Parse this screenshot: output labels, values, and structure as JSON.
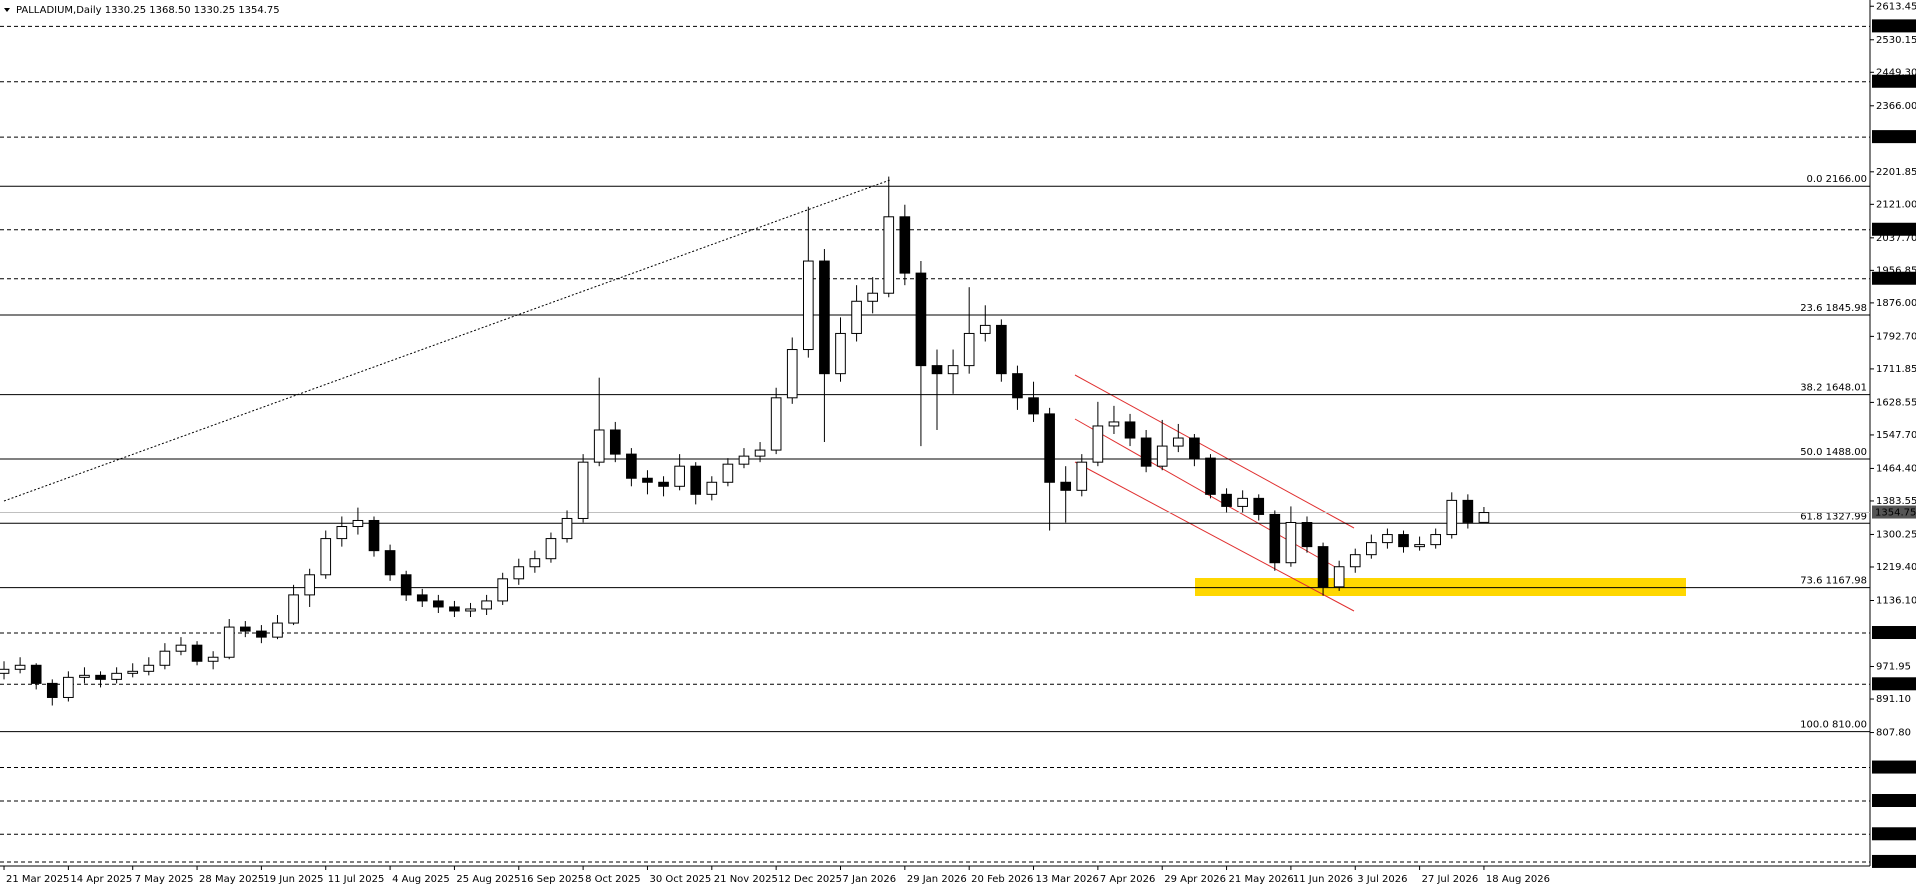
{
  "chart_data": {
    "type": "candlestick",
    "title": "PALLADIUM,Daily  1330.25 1368.50 1330.25 1354.75",
    "x": [
      0,
      4,
      8,
      12,
      16,
      20,
      24,
      28,
      32,
      36,
      40,
      44,
      48,
      52,
      56,
      60,
      64,
      68,
      72,
      76,
      80,
      84,
      88,
      92,
      96,
      100,
      104,
      108,
      112,
      116,
      120,
      124,
      128,
      132,
      136,
      140,
      144,
      148,
      152,
      156,
      160,
      164,
      168,
      172,
      176,
      180,
      184,
      188,
      192,
      196,
      200,
      204,
      208,
      212,
      216,
      220,
      224,
      228,
      232,
      236,
      240,
      244,
      248,
      252,
      256,
      260,
      264,
      268,
      272,
      276,
      280,
      284,
      288,
      292,
      296,
      300,
      304,
      308,
      312,
      316,
      320,
      324,
      328,
      332,
      336,
      340,
      344,
      348,
      352,
      356,
      360,
      364,
      368
    ],
    "open": [
      955,
      965,
      975,
      930,
      895,
      945,
      950,
      940,
      955,
      960,
      975,
      1010,
      1025,
      985,
      995,
      1070,
      1060,
      1045,
      1080,
      1150,
      1200,
      1290,
      1320,
      1335,
      1260,
      1200,
      1150,
      1135,
      1120,
      1110,
      1115,
      1135,
      1190,
      1220,
      1240,
      1290,
      1340,
      1480,
      1560,
      1500,
      1440,
      1430,
      1420,
      1470,
      1400,
      1430,
      1475,
      1495,
      1510,
      1640,
      1760,
      1980,
      1700,
      1800,
      1880,
      1900,
      2090,
      1950,
      1720,
      1700,
      1720,
      1800,
      1820,
      1700,
      1640,
      1600,
      1430,
      1410,
      1480,
      1570,
      1580,
      1540,
      1470,
      1520,
      1540,
      1490,
      1400,
      1370,
      1390,
      1350,
      1230,
      1330,
      1270,
      1170,
      1220,
      1250,
      1280,
      1300,
      1270,
      1275,
      1300,
      1385,
      1330.25
    ],
    "high": [
      985,
      995,
      980,
      940,
      960,
      970,
      960,
      970,
      980,
      995,
      1030,
      1045,
      1035,
      1010,
      1090,
      1085,
      1075,
      1100,
      1175,
      1215,
      1310,
      1345,
      1367,
      1345,
      1275,
      1210,
      1165,
      1150,
      1135,
      1130,
      1150,
      1205,
      1240,
      1260,
      1305,
      1360,
      1500,
      1690,
      1580,
      1515,
      1460,
      1445,
      1500,
      1480,
      1445,
      1490,
      1515,
      1530,
      1665,
      1790,
      2115,
      2010,
      1840,
      1920,
      1940,
      2190,
      2120,
      1980,
      1760,
      1760,
      1915,
      1870,
      1835,
      1720,
      1680,
      1615,
      1470,
      1500,
      1630,
      1620,
      1600,
      1560,
      1585,
      1575,
      1550,
      1500,
      1415,
      1410,
      1400,
      1360,
      1370,
      1345,
      1280,
      1235,
      1265,
      1300,
      1315,
      1310,
      1295,
      1315,
      1405,
      1400,
      1368.5
    ],
    "low": [
      940,
      955,
      915,
      875,
      885,
      930,
      920,
      930,
      945,
      950,
      965,
      1000,
      975,
      965,
      990,
      1045,
      1030,
      1040,
      1075,
      1120,
      1190,
      1270,
      1300,
      1245,
      1185,
      1135,
      1120,
      1105,
      1095,
      1095,
      1100,
      1125,
      1175,
      1205,
      1230,
      1280,
      1330,
      1470,
      1480,
      1420,
      1400,
      1395,
      1410,
      1375,
      1385,
      1420,
      1465,
      1480,
      1500,
      1625,
      1740,
      1530,
      1680,
      1780,
      1850,
      1890,
      1920,
      1520,
      1560,
      1650,
      1700,
      1780,
      1680,
      1610,
      1580,
      1310,
      1330,
      1395,
      1470,
      1550,
      1520,
      1455,
      1460,
      1505,
      1470,
      1390,
      1355,
      1355,
      1335,
      1210,
      1220,
      1255,
      1148,
      1160,
      1205,
      1240,
      1265,
      1255,
      1260,
      1265,
      1290,
      1315,
      1330.25
    ],
    "close": [
      965,
      975,
      930,
      895,
      945,
      950,
      940,
      955,
      960,
      975,
      1010,
      1025,
      985,
      995,
      1070,
      1060,
      1045,
      1080,
      1150,
      1200,
      1290,
      1320,
      1335,
      1260,
      1200,
      1150,
      1135,
      1120,
      1110,
      1115,
      1135,
      1190,
      1220,
      1240,
      1290,
      1340,
      1480,
      1560,
      1500,
      1440,
      1430,
      1420,
      1470,
      1400,
      1430,
      1475,
      1495,
      1510,
      1640,
      1760,
      1980,
      1700,
      1800,
      1880,
      1900,
      2090,
      1950,
      1720,
      1700,
      1720,
      1800,
      1820,
      1700,
      1640,
      1600,
      1430,
      1410,
      1480,
      1570,
      1580,
      1540,
      1470,
      1520,
      1540,
      1490,
      1400,
      1370,
      1390,
      1350,
      1230,
      1330,
      1270,
      1170,
      1220,
      1250,
      1280,
      1300,
      1270,
      1275,
      1300,
      1385,
      1330.25,
      1354.75
    ],
    "up_color": "#ffffff",
    "down_color": "#000000",
    "xlim": [
      -1,
      464
    ],
    "xticks": [
      {
        "value": 0,
        "label": "21 Mar 2025"
      },
      {
        "value": 16,
        "label": "14 Apr 2025"
      },
      {
        "value": 32,
        "label": "7 May 2025"
      },
      {
        "value": 48,
        "label": "28 May 2025"
      },
      {
        "value": 64,
        "label": "19 Jun 2025"
      },
      {
        "value": 80,
        "label": "11 Jul 2025"
      },
      {
        "value": 96,
        "label": "4 Aug 2025"
      },
      {
        "value": 112,
        "label": "25 Aug 2025"
      },
      {
        "value": 128,
        "label": "16 Sep 2025"
      },
      {
        "value": 144,
        "label": "8 Oct 2025"
      },
      {
        "value": 160,
        "label": "30 Oct 2025"
      },
      {
        "value": 176,
        "label": "21 Nov 2025"
      },
      {
        "value": 192,
        "label": "12 Dec 2025"
      },
      {
        "value": 208,
        "label": "7 Jan 2026"
      },
      {
        "value": 224,
        "label": "29 Jan 2026"
      },
      {
        "value": 240,
        "label": "20 Feb 2026"
      },
      {
        "value": 256,
        "label": "13 Mar 2026"
      },
      {
        "value": 272,
        "label": "7 Apr 2026"
      },
      {
        "value": 288,
        "label": "29 Apr 2026"
      },
      {
        "value": 304,
        "label": "21 May 2026"
      },
      {
        "value": 320,
        "label": "11 Jun 2026"
      },
      {
        "value": 336,
        "label": "3 Jul 2026"
      },
      {
        "value": 352,
        "label": "27 Jul 2026"
      },
      {
        "value": 368,
        "label": "18 Aug 2026"
      }
    ],
    "ylim": [
      476,
      2629
    ],
    "yticks": [
      {
        "value": 2613.45,
        "label": "2613.45"
      },
      {
        "value": 2530.15,
        "label": "2530.15"
      },
      {
        "value": 2449.3,
        "label": "2449.30"
      },
      {
        "value": 2366,
        "label": "2366.00"
      },
      {
        "value": 2201.85,
        "label": "2201.85"
      },
      {
        "value": 2121,
        "label": "2121.00"
      },
      {
        "value": 2037.7,
        "label": "2037.70"
      },
      {
        "value": 1956.85,
        "label": "1956.85"
      },
      {
        "value": 1876,
        "label": "1876.00"
      },
      {
        "value": 1792.7,
        "label": "1792.70"
      },
      {
        "value": 1711.85,
        "label": "1711.85"
      },
      {
        "value": 1628.55,
        "label": "1628.55"
      },
      {
        "value": 1547.7,
        "label": "1547.70"
      },
      {
        "value": 1464.4,
        "label": "1464.40"
      },
      {
        "value": 1383.55,
        "label": "1383.55"
      },
      {
        "value": 1300.25,
        "label": "1300.25"
      },
      {
        "value": 1219.4,
        "label": "1219.40"
      },
      {
        "value": 1136.1,
        "label": "1136.10"
      },
      {
        "value": 971.95,
        "label": "971.95"
      },
      {
        "value": 891.1,
        "label": "891.10"
      },
      {
        "value": 807.8,
        "label": "807.80"
      }
    ],
    "levels": [
      {
        "value": 2563.4,
        "label": "2563.40"
      },
      {
        "value": 2425.75,
        "label": "2425.75"
      },
      {
        "value": 2288.1,
        "label": "2288.10"
      },
      {
        "value": 2057.8,
        "label": "2057.80"
      },
      {
        "value": 1936,
        "label": "1936.00"
      },
      {
        "value": 1055.25,
        "label": "1055.25"
      },
      {
        "value": 927.75,
        "label": "927.75"
      },
      {
        "value": 720.75,
        "label": "720.75"
      },
      {
        "value": 637.6,
        "label": "637.60"
      },
      {
        "value": 554.85,
        "label": "554.85"
      },
      {
        "value": 486.1,
        "label": "486.10"
      }
    ],
    "fibonacci": [
      {
        "ratio": "0.0",
        "price": {
          "value": 2166,
          "label": "2166.00"
        }
      },
      {
        "ratio": "23.6",
        "price": {
          "value": 1845.98,
          "label": "1845.98"
        }
      },
      {
        "ratio": "38.2",
        "price": {
          "value": 1648.01,
          "label": "1648.01"
        }
      },
      {
        "ratio": "50.0",
        "price": {
          "value": 1488,
          "label": "1488.00"
        }
      },
      {
        "ratio": "61.8",
        "price": {
          "value": 1327.99,
          "label": "1327.99"
        }
      },
      {
        "ratio": "73.6",
        "price": {
          "value": 1167.98,
          "label": "1167.98"
        }
      },
      {
        "ratio": "100.0",
        "price": {
          "value": 810,
          "label": "810.00"
        }
      }
    ],
    "current_price": {
      "value": 1354.75,
      "label": "1354.75"
    }
  }
}
